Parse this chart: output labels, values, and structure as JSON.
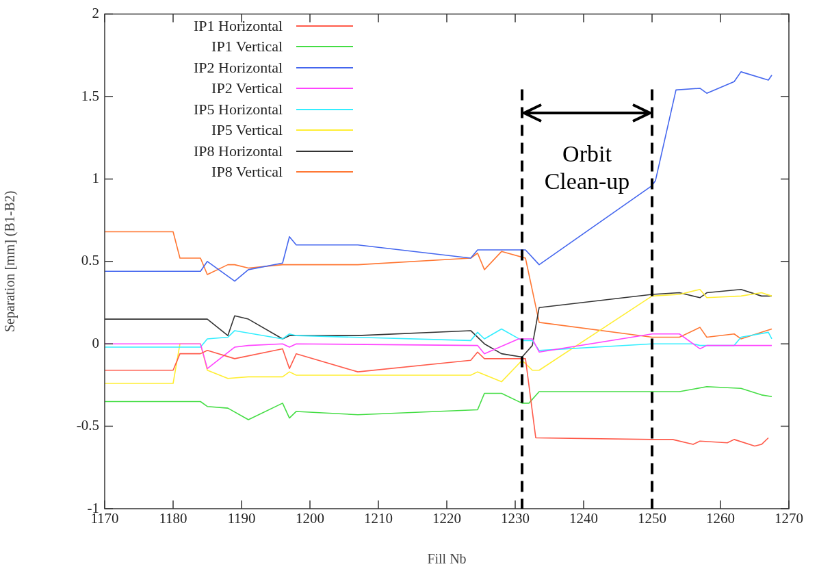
{
  "chart_data": {
    "type": "line",
    "xlabel": "Fill Nb",
    "ylabel": "Separation [mm] (B1-B2)",
    "xlim": [
      1170,
      1270
    ],
    "xticks": [
      1170,
      1180,
      1190,
      1200,
      1210,
      1220,
      1230,
      1240,
      1250,
      1260,
      1270
    ],
    "ylim": [
      -1,
      2
    ],
    "yticks": [
      -1,
      -0.5,
      0,
      0.5,
      1,
      1.5,
      2
    ],
    "grid": false,
    "legend": "top left",
    "marker": "none",
    "line_style": "solid",
    "ref_lines": [
      {
        "axis": "x",
        "value": 1231,
        "color": "#000000",
        "line_style": "dashed"
      },
      {
        "axis": "x",
        "value": 1250,
        "color": "#000000",
        "line_style": "dashed"
      }
    ],
    "annotations": [
      "Orbit Clean-up"
    ],
    "series": [
      {
        "name": "IP1 Horizontal",
        "color": "#ff5a4a",
        "x": [
          1170,
          1180,
          1181,
          1184,
          1185,
          1189,
          1196,
          1197,
          1198,
          1207,
          1223.5,
          1224.5,
          1225.5,
          1231.5,
          1233,
          1250,
          1253,
          1256,
          1257,
          1261,
          1262,
          1265,
          1266,
          1267
        ],
        "values": [
          -0.16,
          -0.16,
          -0.06,
          -0.06,
          -0.04,
          -0.09,
          -0.03,
          -0.15,
          -0.06,
          -0.17,
          -0.1,
          -0.05,
          -0.09,
          -0.09,
          -0.57,
          -0.58,
          -0.58,
          -0.61,
          -0.59,
          -0.6,
          -0.58,
          -0.62,
          -0.61,
          -0.57
        ]
      },
      {
        "name": "IP1 Vertical",
        "color": "#44dd44",
        "x": [
          1170,
          1184,
          1185,
          1188,
          1191,
          1196,
          1197,
          1198,
          1207,
          1224.5,
          1225.5,
          1228,
          1231,
          1232,
          1233.5,
          1254,
          1258,
          1263,
          1266,
          1267.5
        ],
        "values": [
          -0.35,
          -0.35,
          -0.38,
          -0.39,
          -0.46,
          -0.36,
          -0.45,
          -0.41,
          -0.43,
          -0.4,
          -0.3,
          -0.3,
          -0.36,
          -0.36,
          -0.29,
          -0.29,
          -0.26,
          -0.27,
          -0.31,
          -0.32
        ]
      },
      {
        "name": "IP2 Horizontal",
        "color": "#4466ee",
        "x": [
          1170,
          1184,
          1185,
          1189,
          1191,
          1196,
          1197,
          1198,
          1207,
          1223.5,
          1224.5,
          1231.5,
          1233.5,
          1250,
          1250.5,
          1253.5,
          1257,
          1258,
          1262,
          1263,
          1267,
          1267.5
        ],
        "values": [
          0.44,
          0.44,
          0.5,
          0.38,
          0.45,
          0.49,
          0.65,
          0.6,
          0.6,
          0.52,
          0.57,
          0.57,
          0.48,
          0.96,
          0.99,
          1.54,
          1.55,
          1.52,
          1.59,
          1.65,
          1.6,
          1.63
        ]
      },
      {
        "name": "IP2 Vertical",
        "color": "#ff44ff",
        "x": [
          1170,
          1184,
          1185,
          1189,
          1191,
          1196,
          1197,
          1198,
          1224.5,
          1225.5,
          1230.5,
          1232.5,
          1233.5,
          1250,
          1254,
          1257,
          1258,
          1267.5
        ],
        "values": [
          0,
          0,
          -0.15,
          -0.02,
          -0.01,
          0,
          -0.02,
          0,
          -0.01,
          -0.06,
          0.03,
          0.03,
          -0.05,
          0.06,
          0.06,
          -0.03,
          -0.01,
          -0.01
        ]
      },
      {
        "name": "IP5 Horizontal",
        "color": "#33eeff",
        "x": [
          1170,
          1184,
          1185,
          1188,
          1189,
          1196,
          1197,
          1198,
          1223.5,
          1224.5,
          1225.5,
          1228,
          1231,
          1232.5,
          1233.5,
          1250,
          1256,
          1257,
          1262,
          1263,
          1267,
          1267.5
        ],
        "values": [
          -0.02,
          -0.02,
          0.03,
          0.04,
          0.08,
          0.03,
          0.06,
          0.05,
          0.02,
          0.07,
          0.03,
          0.09,
          0.02,
          0.02,
          -0.04,
          0,
          0,
          -0.01,
          -0.01,
          0.04,
          0.07,
          0.03
        ]
      },
      {
        "name": "IP5 Vertical",
        "color": "#ffee33",
        "x": [
          1170,
          1180,
          1181,
          1184,
          1185,
          1188,
          1191,
          1196,
          1197,
          1198,
          1223.5,
          1224.5,
          1228,
          1231,
          1232.5,
          1233.5,
          1250,
          1254,
          1257,
          1258,
          1263,
          1266,
          1267.5
        ],
        "values": [
          -0.24,
          -0.24,
          0,
          0,
          -0.16,
          -0.21,
          -0.2,
          -0.2,
          -0.17,
          -0.19,
          -0.19,
          -0.17,
          -0.23,
          -0.1,
          -0.16,
          -0.16,
          0.29,
          0.3,
          0.33,
          0.28,
          0.29,
          0.31,
          0.29
        ]
      },
      {
        "name": "IP8 Horizontal",
        "color": "#333333",
        "x": [
          1170,
          1185,
          1188,
          1189,
          1191,
          1196,
          1197,
          1207,
          1223.5,
          1225.5,
          1228,
          1231,
          1232.5,
          1233.5,
          1250,
          1254,
          1257,
          1258,
          1263,
          1266,
          1267.5
        ],
        "values": [
          0.15,
          0.15,
          0.05,
          0.17,
          0.15,
          0.03,
          0.05,
          0.05,
          0.08,
          0,
          -0.06,
          -0.08,
          -0.01,
          0.22,
          0.3,
          0.31,
          0.28,
          0.31,
          0.33,
          0.29,
          0.29
        ]
      },
      {
        "name": "IP8 Vertical",
        "color": "#ff7733",
        "x": [
          1170,
          1180,
          1181,
          1184,
          1185,
          1188,
          1189,
          1191,
          1196,
          1207,
          1223.5,
          1224.5,
          1225.5,
          1228,
          1231.5,
          1233.5,
          1250,
          1254,
          1257,
          1258,
          1262,
          1263,
          1266,
          1267.5
        ],
        "values": [
          0.68,
          0.68,
          0.52,
          0.52,
          0.42,
          0.48,
          0.48,
          0.46,
          0.48,
          0.48,
          0.52,
          0.55,
          0.45,
          0.56,
          0.52,
          0.13,
          0.04,
          0.04,
          0.1,
          0.04,
          0.06,
          0.03,
          0.07,
          0.09
        ]
      }
    ]
  }
}
